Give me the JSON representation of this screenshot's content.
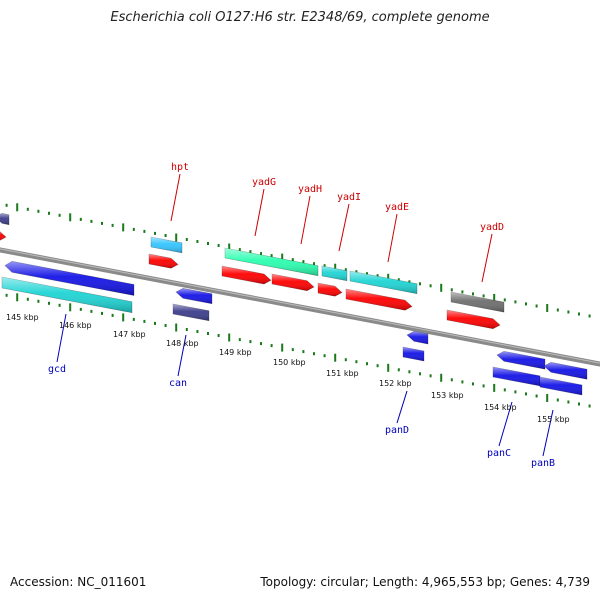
{
  "title": "Escherichia coli O127:H6 str. E2348/69, complete genome",
  "accession": "Accession: NC_011601",
  "topology": "Topology: circular; Length: 4,965,553 bp; Genes: 4,739",
  "colors": {
    "forward_label": "#cc0000",
    "reverse_label": "#0000bb",
    "tick": "#1a7a1a",
    "backbone": "#8a8a8a",
    "red": "#ff0000",
    "blue": "#1414e6",
    "cyan": "#1fd4d4",
    "sky": "#33c4ff",
    "mint": "#2bffb0",
    "navy": "#3c3c8c",
    "gray": "#6e6e6e"
  },
  "scale_labels": [
    "145 kbp",
    "146 kbp",
    "147 kbp",
    "148 kbp",
    "149 kbp",
    "150 kbp",
    "151 kbp",
    "152 kbp",
    "153 kbp",
    "154 kbp",
    "155 kbp"
  ],
  "forward_labels": [
    "hpt",
    "yadG",
    "yadH",
    "yadI",
    "yadE",
    "yadD"
  ],
  "reverse_labels": [
    "gcd",
    "can",
    "panD",
    "panC",
    "panB"
  ]
}
